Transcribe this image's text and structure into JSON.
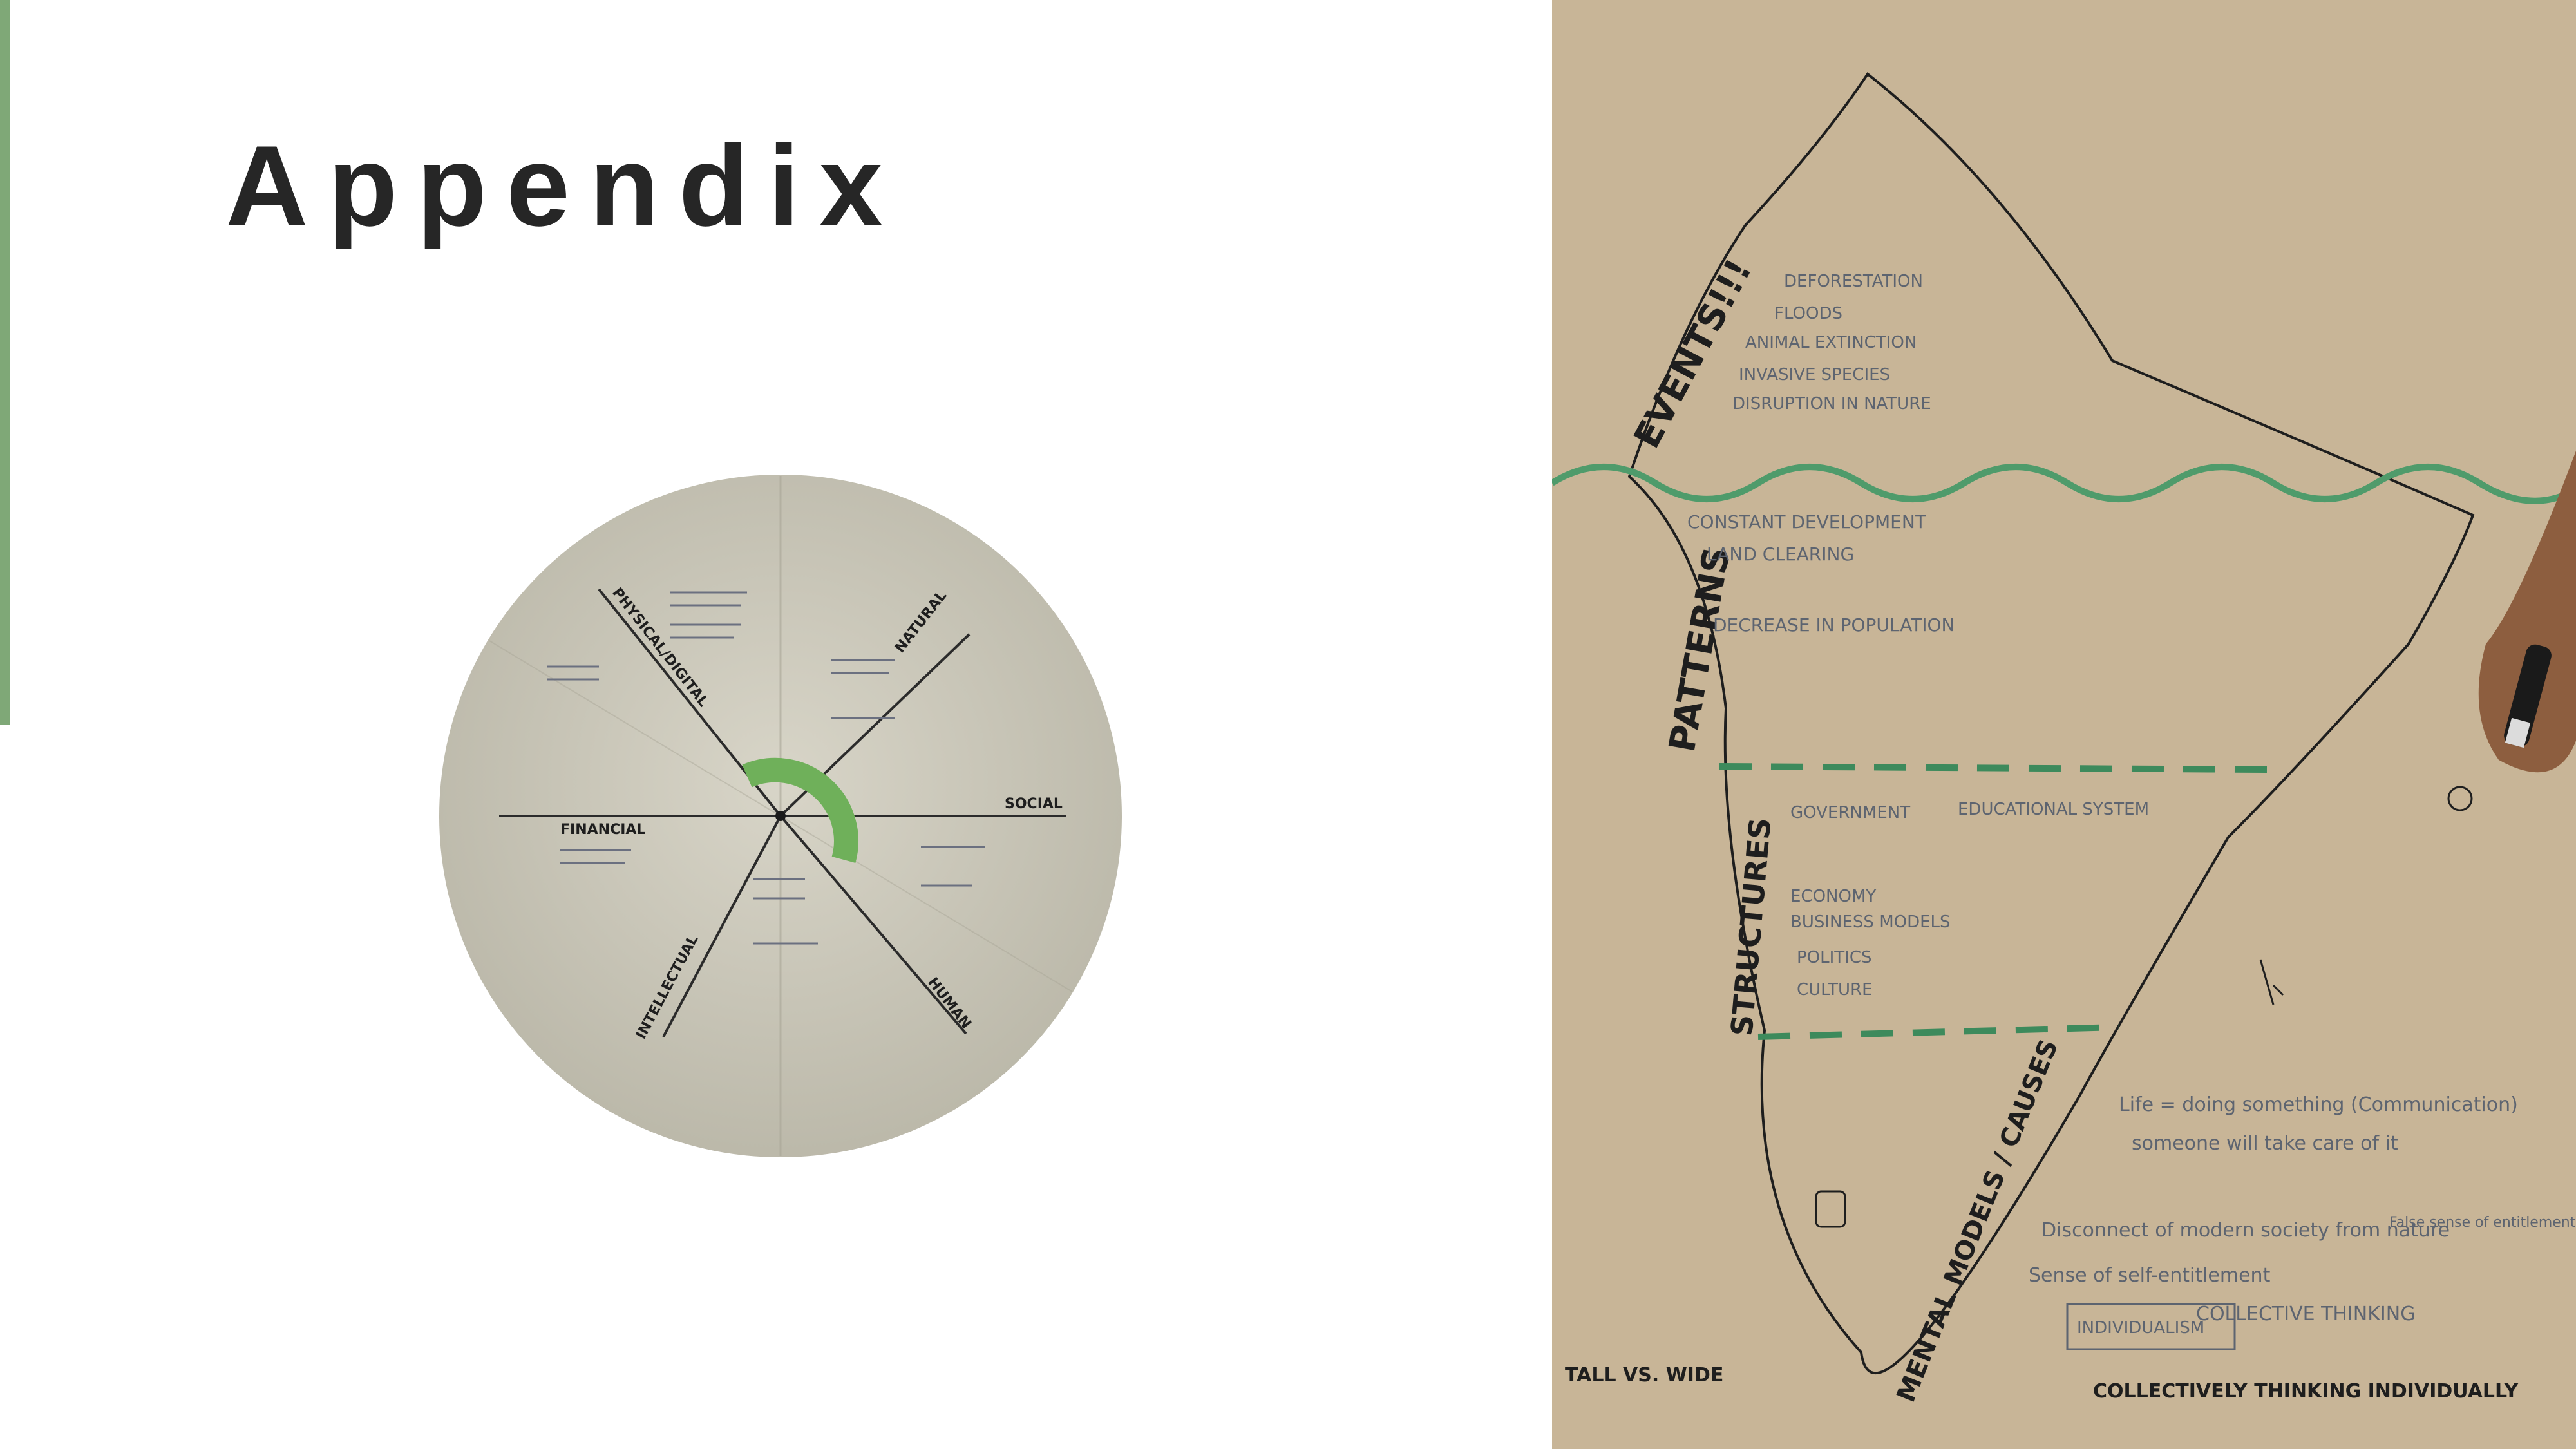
{
  "slide": {
    "title": "Appendix"
  },
  "colors": {
    "accent": "#7fa877",
    "title": "#262626",
    "paper": "#c8b597",
    "wheel": "#c9c6b8",
    "marker": "#4f9b6b"
  },
  "wheel": {
    "capitals": [
      "PHYSICAL/DIGITAL",
      "NATURAL",
      "SOCIAL",
      "HUMAN",
      "INTELLECTUAL",
      "FINANCIAL"
    ]
  },
  "iceberg": {
    "layers": [
      "EVENTS!!!",
      "PATTERNS",
      "STRUCTURES",
      "MENTAL MODELS / CAUSES"
    ],
    "events_notes": [
      "DEFORESTATION",
      "FLOODS",
      "ANIMAL EXTINCTION",
      "INVASIVE SPECIES",
      "DISRUPTION IN NATURE"
    ],
    "patterns_notes": [
      "CONSTANT DEVELOPMENT",
      "LAND CLEARING",
      "DECREASE IN POPULATION"
    ],
    "structures_notes": [
      "GOVERNMENT",
      "EDUCATIONAL SYSTEM",
      "ECONOMY",
      "BUSINESS MODELS",
      "POLITICS",
      "CULTURE"
    ],
    "side_notes": [
      "Life = doing something (Communication)",
      "someone will take care of it",
      "Disconnect of modern society from nature",
      "Sense of self-entitlement",
      "INDIVIDUALISM",
      "COLLECTIVE THINKING",
      "False sense of entitlement"
    ],
    "bottom_labels": {
      "left": "TALL VS. WIDE",
      "right": "COLLECTIVELY THINKING INDIVIDUALLY"
    }
  }
}
